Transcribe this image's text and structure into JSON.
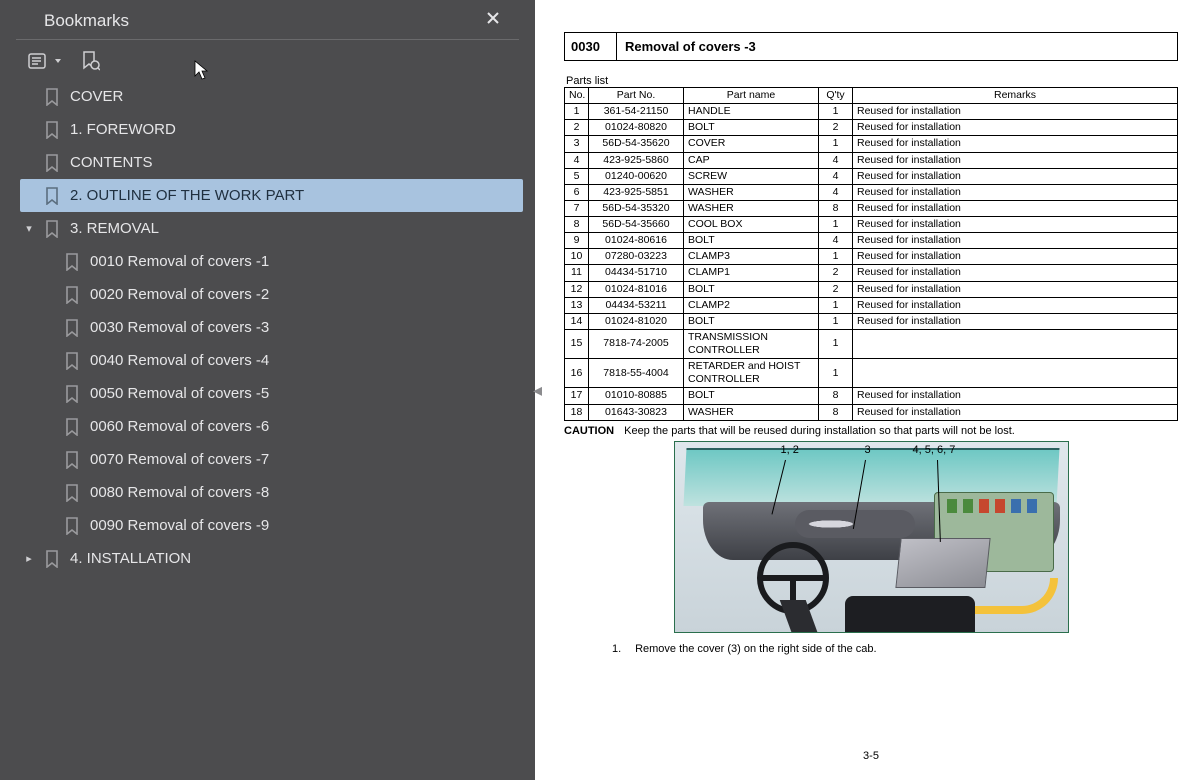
{
  "sidebar": {
    "title": "Bookmarks",
    "items": [
      {
        "label": "COVER",
        "indent": 0,
        "chevron": "",
        "selected": false
      },
      {
        "label": "1. FOREWORD",
        "indent": 0,
        "chevron": "",
        "selected": false
      },
      {
        "label": "CONTENTS",
        "indent": 0,
        "chevron": "",
        "selected": false
      },
      {
        "label": "2. OUTLINE OF THE WORK PART",
        "indent": 0,
        "chevron": "",
        "selected": true
      },
      {
        "label": "3. REMOVAL",
        "indent": 0,
        "chevron": "down",
        "selected": false
      },
      {
        "label": "0010 Removal of covers -1",
        "indent": 1,
        "chevron": "",
        "selected": false
      },
      {
        "label": "0020 Removal of covers -2",
        "indent": 1,
        "chevron": "",
        "selected": false
      },
      {
        "label": "0030 Removal of covers -3",
        "indent": 1,
        "chevron": "",
        "selected": false
      },
      {
        "label": "0040 Removal of covers -4",
        "indent": 1,
        "chevron": "",
        "selected": false
      },
      {
        "label": "0050 Removal of covers -5",
        "indent": 1,
        "chevron": "",
        "selected": false
      },
      {
        "label": "0060 Removal of covers -6",
        "indent": 1,
        "chevron": "",
        "selected": false
      },
      {
        "label": "0070 Removal of covers -7",
        "indent": 1,
        "chevron": "",
        "selected": false
      },
      {
        "label": "0080 Removal of covers -8",
        "indent": 1,
        "chevron": "",
        "selected": false
      },
      {
        "label": "0090 Removal of covers -9",
        "indent": 1,
        "chevron": "",
        "selected": false
      },
      {
        "label": "4. INSTALLATION",
        "indent": 0,
        "chevron": "right",
        "selected": false
      }
    ]
  },
  "page": {
    "section_code": "0030",
    "section_title": "Removal of covers -3",
    "parts_caption": "Parts list",
    "columns": [
      "No.",
      "Part No.",
      "Part name",
      "Q'ty",
      "Remarks"
    ],
    "rows": [
      [
        "1",
        "361-54-21150",
        "HANDLE",
        "1",
        "Reused for installation"
      ],
      [
        "2",
        "01024-80820",
        "BOLT",
        "2",
        "Reused for installation"
      ],
      [
        "3",
        "56D-54-35620",
        "COVER",
        "1",
        "Reused for installation"
      ],
      [
        "4",
        "423-925-5860",
        "CAP",
        "4",
        "Reused for installation"
      ],
      [
        "5",
        "01240-00620",
        "SCREW",
        "4",
        "Reused for installation"
      ],
      [
        "6",
        "423-925-5851",
        "WASHER",
        "4",
        "Reused for installation"
      ],
      [
        "7",
        "56D-54-35320",
        "WASHER",
        "8",
        "Reused for installation"
      ],
      [
        "8",
        "56D-54-35660",
        "COOL BOX",
        "1",
        "Reused for installation"
      ],
      [
        "9",
        "01024-80616",
        "BOLT",
        "4",
        "Reused for installation"
      ],
      [
        "10",
        "07280-03223",
        "CLAMP3",
        "1",
        "Reused for installation"
      ],
      [
        "11",
        "04434-51710",
        "CLAMP1",
        "2",
        "Reused for installation"
      ],
      [
        "12",
        "01024-81016",
        "BOLT",
        "2",
        "Reused for installation"
      ],
      [
        "13",
        "04434-53211",
        "CLAMP2",
        "1",
        "Reused for installation"
      ],
      [
        "14",
        "01024-81020",
        "BOLT",
        "1",
        "Reused for installation"
      ],
      [
        "15",
        "7818-74-2005",
        "TRANSMISSION CONTROLLER",
        "1",
        ""
      ],
      [
        "16",
        "7818-55-4004",
        "RETARDER and HOIST CONTROLLER",
        "1",
        ""
      ],
      [
        "17",
        "01010-80885",
        "BOLT",
        "8",
        "Reused for installation"
      ],
      [
        "18",
        "01643-30823",
        "WASHER",
        "8",
        "Reused for installation"
      ]
    ],
    "caution_label": "CAUTION",
    "caution_text": "Keep the parts that will be reused during installation so that parts will not be lost.",
    "callouts": {
      "a": "1, 2",
      "b": "3",
      "c": "4, 5, 6, 7"
    },
    "step_num": "1.",
    "step_text": "Remove the cover (3) on the right side of the cab.",
    "page_number": "3-5"
  },
  "colors": {
    "sidebar_bg": "#4c4c4e",
    "selected_bg": "#a8c3df",
    "fig_border": "#2a6f4d"
  }
}
